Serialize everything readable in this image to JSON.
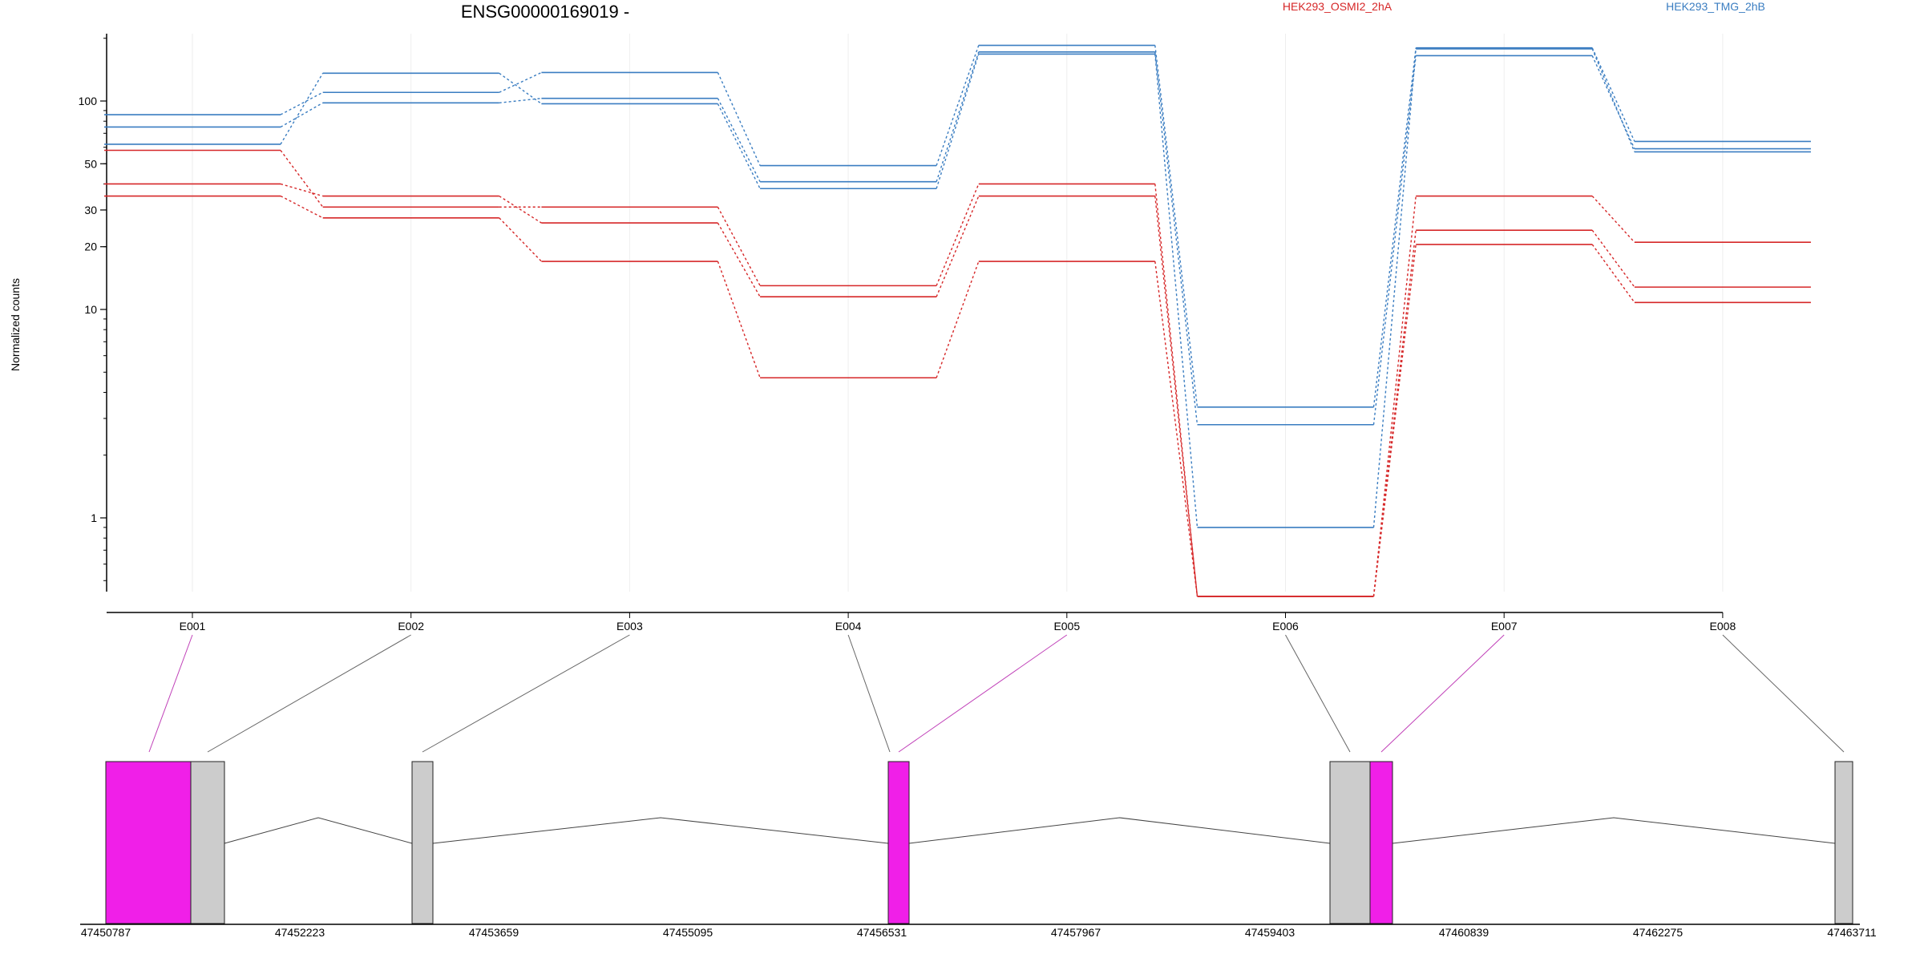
{
  "chart_data": {
    "type": "line",
    "title": "ENSG00000169019 -",
    "ylabel": "Normalized counts",
    "yscale": "log",
    "ylim": [
      0.4,
      250
    ],
    "yticks": [
      1,
      10,
      20,
      30,
      50,
      100
    ],
    "categories": [
      "E001",
      "E002",
      "E003",
      "E004",
      "E005",
      "E006",
      "E007",
      "E008"
    ],
    "legend": [
      {
        "name": "HEK293_OSMI2_2hA",
        "color": "#d62728"
      },
      {
        "name": "HEK293_TMG_2hB",
        "color": "#3a7dc1"
      }
    ],
    "series": [
      {
        "group": "HEK293_TMG_2hB",
        "color": "#3a7dc1",
        "values": [
          86,
          110,
          137,
          49,
          185,
          3.4,
          180,
          64
        ]
      },
      {
        "group": "HEK293_TMG_2hB",
        "color": "#3a7dc1",
        "values": [
          75,
          98,
          103,
          41,
          172,
          2.8,
          165,
          59
        ]
      },
      {
        "group": "HEK293_TMG_2hB",
        "color": "#3a7dc1",
        "values": [
          62,
          136,
          97,
          38,
          168,
          0.9,
          178,
          57
        ]
      },
      {
        "group": "HEK293_OSMI2_2hA",
        "color": "#d62728",
        "values": [
          58,
          31,
          31,
          13,
          40,
          0.42,
          35,
          21
        ]
      },
      {
        "group": "HEK293_OSMI2_2hA",
        "color": "#d62728",
        "values": [
          40,
          35,
          26,
          11.5,
          35,
          0.42,
          24,
          12.8
        ]
      },
      {
        "group": "HEK293_OSMI2_2hA",
        "color": "#d62728",
        "values": [
          35,
          27.5,
          17,
          4.7,
          17,
          0.42,
          20.5,
          10.8
        ]
      }
    ]
  },
  "gene_model": {
    "coordinate_labels": [
      "47450787",
      "47452223",
      "47453659",
      "47455095",
      "47456531",
      "47457967",
      "47459403",
      "47460839",
      "47462275",
      "47463711"
    ],
    "colors": {
      "highlight": "#f01fe8",
      "normal": "#cccccc",
      "intron": "#444444"
    },
    "exon_highlight": [
      true,
      false,
      false,
      false,
      true,
      false,
      true,
      false
    ]
  }
}
